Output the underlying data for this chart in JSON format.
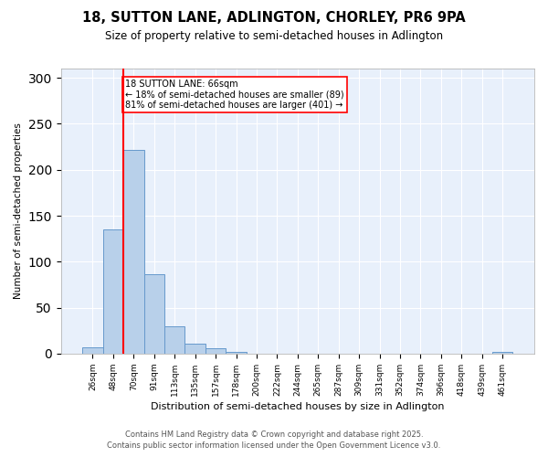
{
  "title_line1": "18, SUTTON LANE, ADLINGTON, CHORLEY, PR6 9PA",
  "title_line2": "Size of property relative to semi-detached houses in Adlington",
  "xlabel": "Distribution of semi-detached houses by size in Adlington",
  "ylabel": "Number of semi-detached properties",
  "categories": [
    "26sqm",
    "48sqm",
    "70sqm",
    "91sqm",
    "113sqm",
    "135sqm",
    "157sqm",
    "178sqm",
    "200sqm",
    "222sqm",
    "244sqm",
    "265sqm",
    "287sqm",
    "309sqm",
    "331sqm",
    "352sqm",
    "374sqm",
    "396sqm",
    "418sqm",
    "439sqm",
    "461sqm"
  ],
  "values": [
    7,
    135,
    222,
    86,
    30,
    11,
    6,
    2,
    0,
    0,
    0,
    0,
    0,
    0,
    0,
    0,
    0,
    0,
    0,
    0,
    2
  ],
  "bar_color": "#b8d0ea",
  "bar_edge_color": "#6699cc",
  "vline_color": "red",
  "annotation_text": "18 SUTTON LANE: 66sqm\n← 18% of semi-detached houses are smaller (89)\n81% of semi-detached houses are larger (401) →",
  "annotation_box_color": "white",
  "annotation_box_edge_color": "red",
  "ylim": [
    0,
    310
  ],
  "yticks": [
    0,
    50,
    100,
    150,
    200,
    250,
    300
  ],
  "footnote1": "Contains HM Land Registry data © Crown copyright and database right 2025.",
  "footnote2": "Contains public sector information licensed under the Open Government Licence v3.0.",
  "plot_bg_color": "#e8f0fb",
  "fig_bg_color": "#ffffff",
  "grid_color": "#ffffff"
}
